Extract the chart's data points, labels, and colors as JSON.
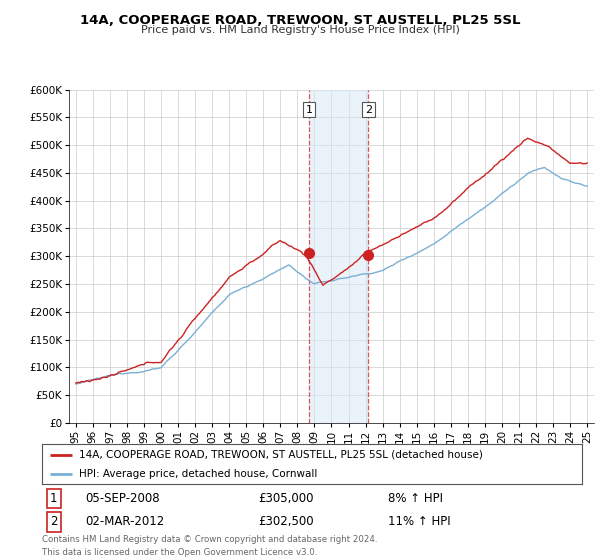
{
  "title": "14A, COOPERAGE ROAD, TREWOON, ST AUSTELL, PL25 5SL",
  "subtitle": "Price paid vs. HM Land Registry's House Price Index (HPI)",
  "ylim": [
    0,
    600000
  ],
  "yticks": [
    0,
    50000,
    100000,
    150000,
    200000,
    250000,
    300000,
    350000,
    400000,
    450000,
    500000,
    550000,
    600000
  ],
  "ytick_labels": [
    "£0",
    "£50K",
    "£100K",
    "£150K",
    "£200K",
    "£250K",
    "£300K",
    "£350K",
    "£400K",
    "£450K",
    "£500K",
    "£550K",
    "£600K"
  ],
  "hpi_color": "#7ab0d4",
  "price_color": "#cc2222",
  "sale1_date_num": 2008.68,
  "sale1_price": 305000,
  "sale1_label": "1",
  "sale2_date_num": 2012.17,
  "sale2_price": 302500,
  "sale2_label": "2",
  "shade_color": "#d6e8f7",
  "vline_color": "#dd4444",
  "legend_line1": "14A, COOPERAGE ROAD, TREWOON, ST AUSTELL, PL25 5SL (detached house)",
  "legend_line2": "HPI: Average price, detached house, Cornwall",
  "footer1": "Contains HM Land Registry data © Crown copyright and database right 2024.",
  "footer2": "This data is licensed under the Open Government Licence v3.0.",
  "background_color": "#ffffff",
  "xlim_min": 1994.6,
  "xlim_max": 2025.4
}
